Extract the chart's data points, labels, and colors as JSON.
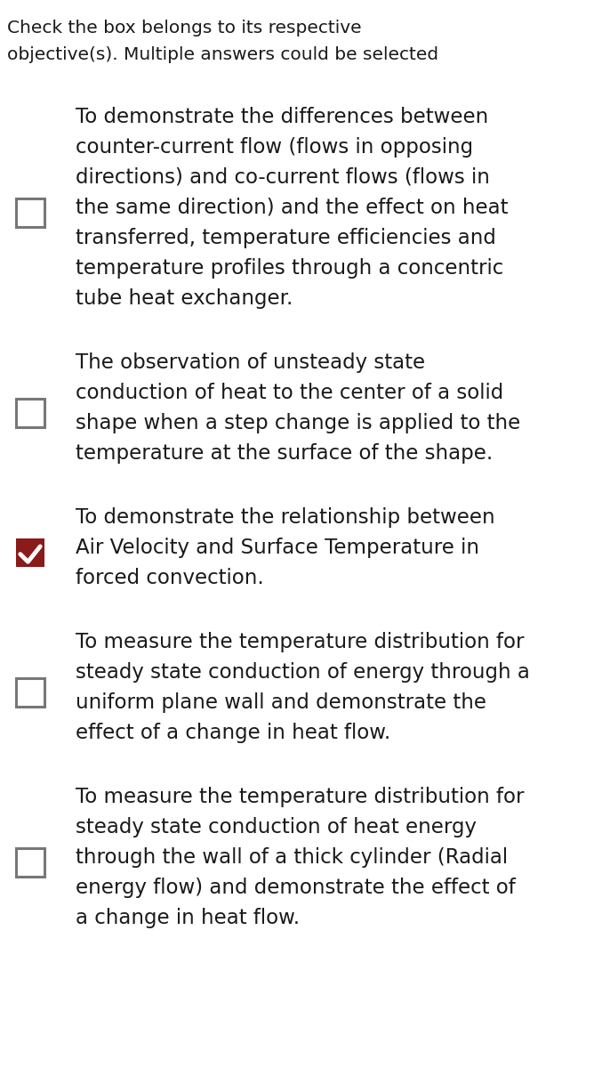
{
  "header_line1": "Check the box belongs to its respective",
  "header_line2": "objective(s). Multiple answers could be selected",
  "background_color": "#ffffff",
  "text_color": "#1a1a1a",
  "header_fontsize": 14.5,
  "item_fontsize": 16.5,
  "checkbox_border_empty": "#777777",
  "checkbox_color_empty": "#ffffff",
  "checkbox_color_checked": "#8b1a1a",
  "checkmark_color": "#ffffff",
  "items": [
    {
      "lines": [
        "To demonstrate the differences between",
        "counter-current flow (flows in opposing",
        "directions) and co-current flows (flows in",
        "the same direction) and the effect on heat",
        "transferred, temperature efficiencies and",
        "temperature profiles through a concentric",
        "tube heat exchanger."
      ],
      "checked": false
    },
    {
      "lines": [
        "The observation of unsteady state",
        "conduction of heat to the center of a solid",
        "shape when a step change is applied to the",
        "temperature at the surface of the shape."
      ],
      "checked": false
    },
    {
      "lines": [
        "To demonstrate the relationship between",
        "Air Velocity and Surface Temperature in",
        "forced convection."
      ],
      "checked": true
    },
    {
      "lines": [
        "To measure the temperature distribution for",
        "steady state conduction of energy through a",
        "uniform plane wall and demonstrate the",
        "effect of a change in heat flow."
      ],
      "checked": false
    },
    {
      "lines": [
        "To measure the temperature distribution for",
        "steady state conduction of heat energy",
        "through the wall of a thick cylinder (Radial",
        "energy flow) and demonstrate the effect of",
        "a change in heat flow."
      ],
      "checked": false
    }
  ],
  "figwidth": 6.77,
  "figheight": 12.0,
  "dpi": 100
}
